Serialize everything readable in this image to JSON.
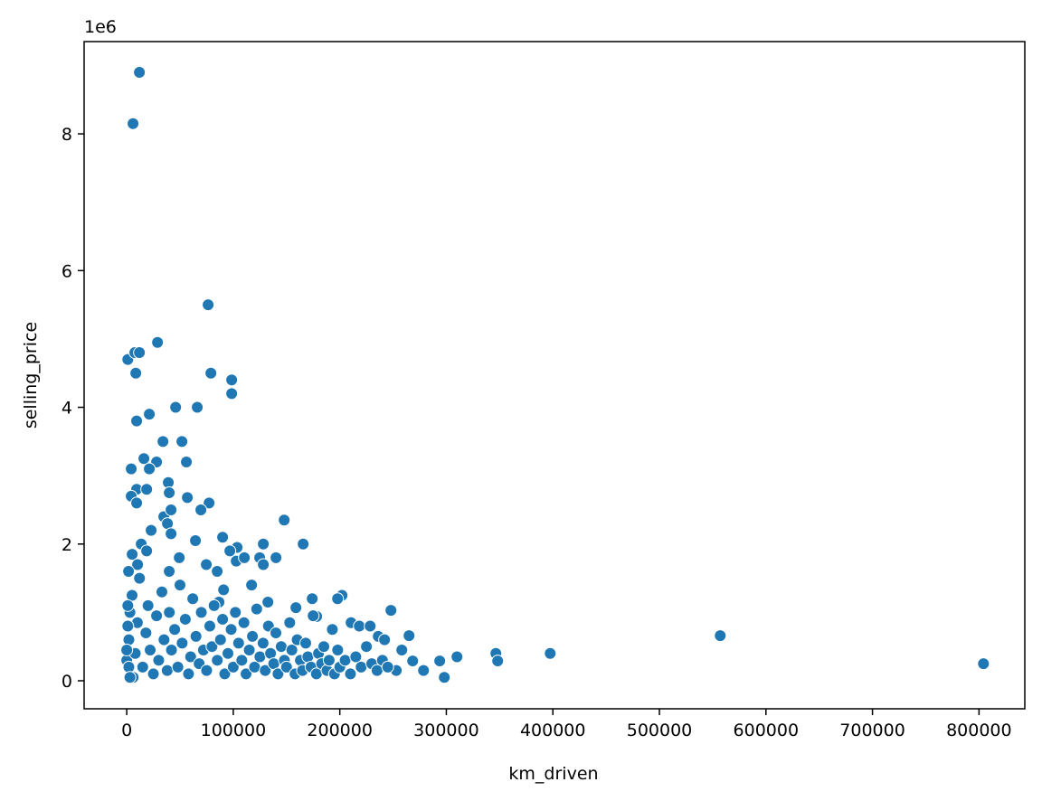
{
  "chart_data": {
    "type": "scatter",
    "x_label": "km_driven",
    "y_label": "selling_price",
    "y_offset_label": "1e6",
    "color": "#1f77b4",
    "edge_color": "#ffffff",
    "xlim": [
      -40000,
      843000
    ],
    "ylim": [
      -410000,
      9350000
    ],
    "xticks": [
      0,
      100000,
      200000,
      300000,
      400000,
      500000,
      600000,
      700000,
      800000
    ],
    "yticks": [
      0,
      {
        "value": 2000000,
        "label": "2"
      },
      {
        "value": 4000000,
        "label": "4"
      },
      {
        "value": 6000000,
        "label": "6"
      },
      {
        "value": 8000000,
        "label": "8"
      }
    ],
    "x": [
      11900,
      5900,
      76400,
      28900,
      1000,
      7600,
      11900,
      8500,
      79000,
      98500,
      98500,
      45900,
      66200,
      21200,
      9300,
      34000,
      51800,
      56000,
      16100,
      4200,
      28000,
      21200,
      39000,
      9300,
      18700,
      4200,
      39900,
      56900,
      77300,
      9300,
      69600,
      34800,
      41600,
      147800,
      38200,
      22900,
      41600,
      90000,
      64500,
      165600,
      128200,
      103600,
      13600,
      96800,
      5100,
      18700,
      102800,
      140100,
      124800,
      110400,
      49300,
      74700,
      128200,
      10200,
      84900,
      1700,
      39900,
      117200,
      90900,
      202100,
      197900,
      174100,
      248000,
      158800,
      86600,
      132500,
      210600,
      218300,
      228500,
      178300,
      265000,
      236100,
      242000,
      258200,
      346500,
      348200,
      310000,
      293800,
      397500,
      557100,
      804200,
      278600,
      298100,
      253000,
      268400,
      0,
      2000,
      3000,
      5000,
      6000,
      8000,
      10000,
      12000,
      15000,
      18000,
      20000,
      22000,
      25000,
      28000,
      30000,
      33000,
      35000,
      38000,
      40000,
      42000,
      45000,
      48000,
      50000,
      52000,
      55000,
      58000,
      60000,
      62000,
      65000,
      68000,
      70000,
      72000,
      75000,
      78000,
      80000,
      82000,
      85000,
      88000,
      90000,
      92000,
      95000,
      98000,
      100000,
      102000,
      105000,
      108000,
      110000,
      112000,
      115000,
      118000,
      120000,
      122000,
      125000,
      128000,
      130000,
      133000,
      135000,
      138000,
      140000,
      142000,
      145000,
      148000,
      150000,
      153000,
      155000,
      158000,
      160000,
      163000,
      165000,
      168000,
      170000,
      173000,
      175000,
      178000,
      180000,
      183000,
      185000,
      188000,
      190000,
      193000,
      195000,
      198000,
      200000,
      205000,
      210000,
      215000,
      220000,
      225000,
      230000,
      235000,
      240000,
      245000,
      1000,
      1000,
      2000,
      0,
      3000
    ],
    "y": [
      8900000,
      8150000,
      5500000,
      4950000,
      4700000,
      4800000,
      4800000,
      4500000,
      4500000,
      4400000,
      4200000,
      4000000,
      4000000,
      3900000,
      3800000,
      3500000,
      3500000,
      3200000,
      3250000,
      3100000,
      3200000,
      3100000,
      2900000,
      2800000,
      2800000,
      2700000,
      2750000,
      2680000,
      2600000,
      2600000,
      2500000,
      2400000,
      2500000,
      2350000,
      2300000,
      2200000,
      2150000,
      2100000,
      2050000,
      2000000,
      2000000,
      1950000,
      2000000,
      1900000,
      1850000,
      1900000,
      1750000,
      1800000,
      1800000,
      1800000,
      1800000,
      1700000,
      1700000,
      1700000,
      1600000,
      1600000,
      1600000,
      1400000,
      1330000,
      1250000,
      1200000,
      1200000,
      1030000,
      1070000,
      1150000,
      1150000,
      850000,
      800000,
      800000,
      940000,
      660000,
      650000,
      600000,
      450000,
      400000,
      290000,
      350000,
      290000,
      400000,
      660000,
      250000,
      150000,
      50000,
      150000,
      290000,
      300000,
      600000,
      1000000,
      1250000,
      50000,
      400000,
      850000,
      1500000,
      200000,
      700000,
      1100000,
      450000,
      100000,
      950000,
      300000,
      1300000,
      600000,
      150000,
      1000000,
      450000,
      750000,
      200000,
      1400000,
      550000,
      900000,
      100000,
      350000,
      1200000,
      650000,
      250000,
      1000000,
      450000,
      150000,
      800000,
      500000,
      1100000,
      300000,
      600000,
      900000,
      100000,
      400000,
      750000,
      200000,
      1000000,
      550000,
      300000,
      850000,
      100000,
      450000,
      650000,
      200000,
      1050000,
      350000,
      550000,
      150000,
      800000,
      400000,
      250000,
      700000,
      100000,
      500000,
      300000,
      200000,
      850000,
      450000,
      100000,
      600000,
      300000,
      150000,
      550000,
      350000,
      200000,
      950000,
      100000,
      400000,
      250000,
      500000,
      150000,
      300000,
      750000,
      100000,
      450000,
      200000,
      300000,
      100000,
      350000,
      200000,
      500000,
      250000,
      150000,
      300000,
      200000,
      800000,
      1100000,
      200000,
      450000,
      50000
    ]
  }
}
